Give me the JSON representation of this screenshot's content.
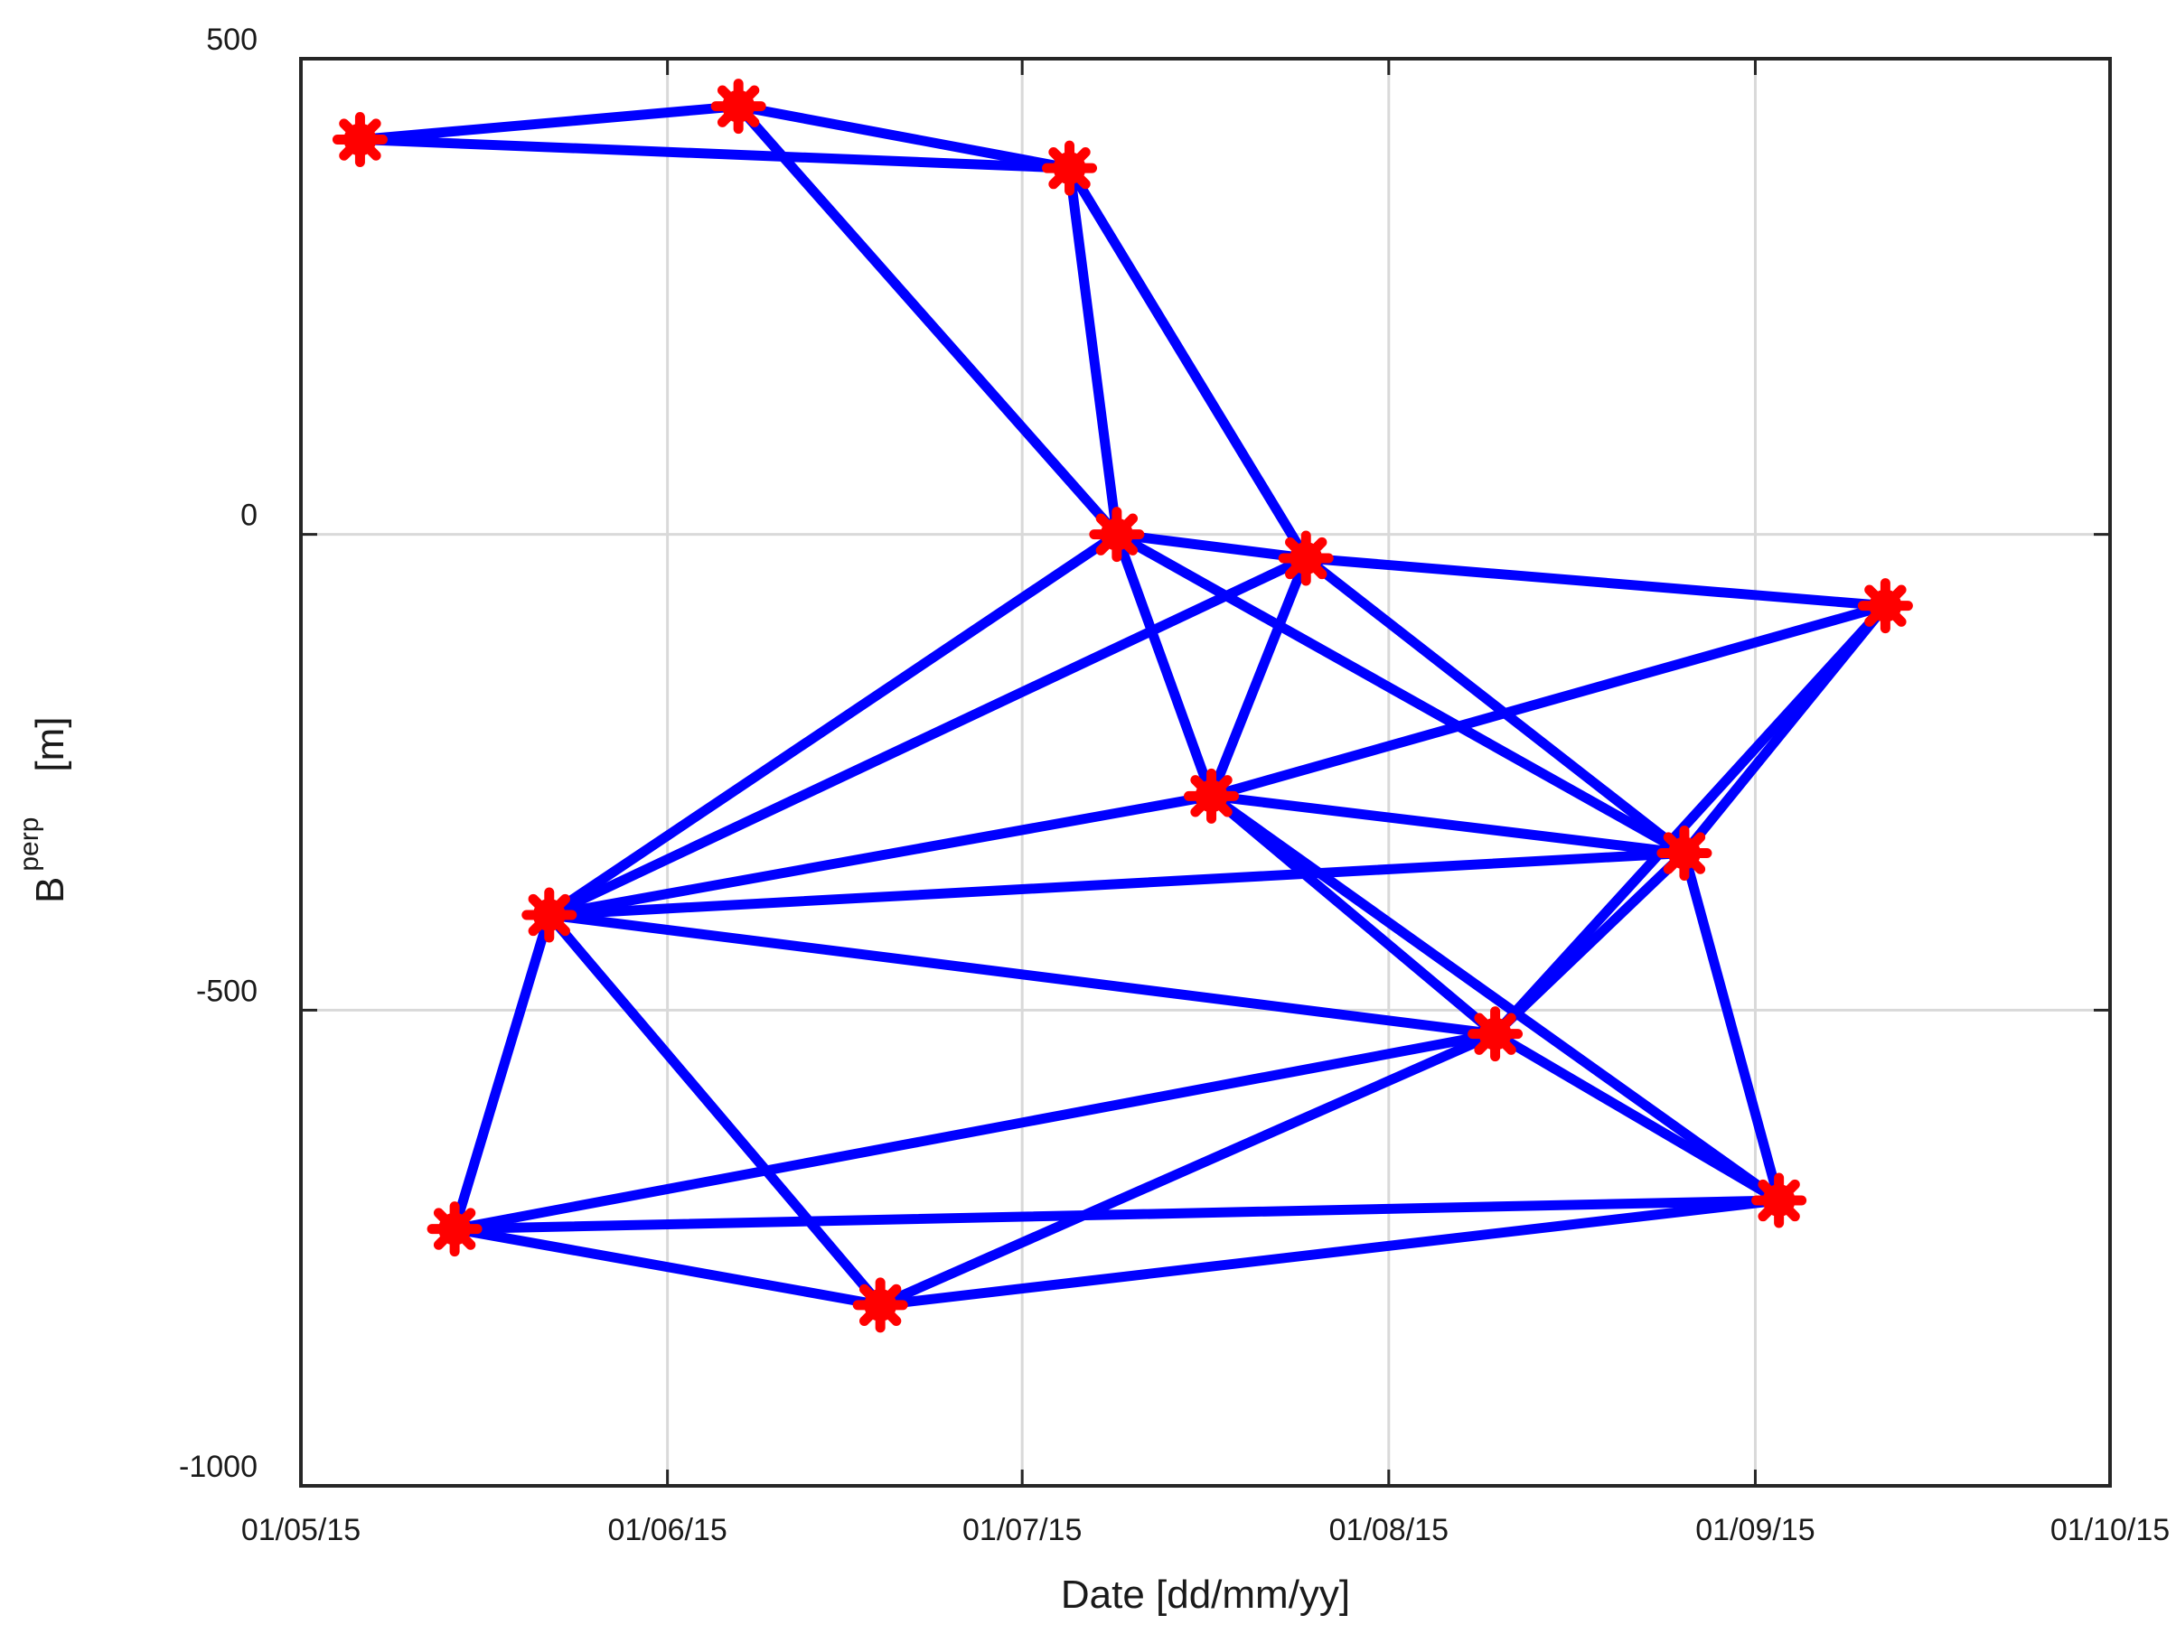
{
  "chart_data": {
    "type": "scatter",
    "xlabel": "Date  [dd/mm/yy]",
    "ylabel_main": "B",
    "ylabel_sub": "perp",
    "ylabel_unit": "[m]",
    "xlim": [
      "2015-05-01",
      "2015-10-01"
    ],
    "ylim": [
      -1000,
      500
    ],
    "x_ticks": [
      {
        "date": "2015-05-01",
        "label": "01/05/15"
      },
      {
        "date": "2015-06-01",
        "label": "01/06/15"
      },
      {
        "date": "2015-07-01",
        "label": "01/07/15"
      },
      {
        "date": "2015-08-01",
        "label": "01/08/15"
      },
      {
        "date": "2015-09-01",
        "label": "01/09/15"
      },
      {
        "date": "2015-10-01",
        "label": "01/10/15"
      }
    ],
    "y_ticks": [
      {
        "value": 500,
        "label": "500"
      },
      {
        "value": 0,
        "label": "0"
      },
      {
        "value": -500,
        "label": "-500"
      },
      {
        "value": -1000,
        "label": "-1000"
      }
    ],
    "grid": true,
    "colors": {
      "edge": "#0000ff",
      "node": "#ff0000",
      "grid": "#d9d9d9",
      "axis": "#262626"
    },
    "nodes": [
      {
        "id": "A",
        "date": "2015-05-06",
        "value": 415
      },
      {
        "id": "B",
        "date": "2015-05-14",
        "value": -730
      },
      {
        "id": "C",
        "date": "2015-05-22",
        "value": -400
      },
      {
        "id": "D",
        "date": "2015-06-07",
        "value": 450
      },
      {
        "id": "E",
        "date": "2015-06-19",
        "value": -810
      },
      {
        "id": "F",
        "date": "2015-07-05",
        "value": 385
      },
      {
        "id": "G",
        "date": "2015-07-09",
        "value": 0
      },
      {
        "id": "H",
        "date": "2015-07-17",
        "value": -275
      },
      {
        "id": "I",
        "date": "2015-07-25",
        "value": -25
      },
      {
        "id": "J",
        "date": "2015-08-10",
        "value": -525
      },
      {
        "id": "K",
        "date": "2015-08-26",
        "value": -335
      },
      {
        "id": "L",
        "date": "2015-09-03",
        "value": -700
      },
      {
        "id": "M",
        "date": "2015-09-12",
        "value": -75
      }
    ],
    "edges": [
      [
        "A",
        "D"
      ],
      [
        "A",
        "F"
      ],
      [
        "D",
        "F"
      ],
      [
        "D",
        "G"
      ],
      [
        "F",
        "G"
      ],
      [
        "F",
        "I"
      ],
      [
        "G",
        "I"
      ],
      [
        "G",
        "C"
      ],
      [
        "G",
        "H"
      ],
      [
        "G",
        "K"
      ],
      [
        "I",
        "M"
      ],
      [
        "I",
        "C"
      ],
      [
        "I",
        "H"
      ],
      [
        "I",
        "K"
      ],
      [
        "C",
        "H"
      ],
      [
        "C",
        "K"
      ],
      [
        "C",
        "J"
      ],
      [
        "C",
        "B"
      ],
      [
        "C",
        "E"
      ],
      [
        "H",
        "M"
      ],
      [
        "H",
        "K"
      ],
      [
        "H",
        "J"
      ],
      [
        "H",
        "L"
      ],
      [
        "K",
        "M"
      ],
      [
        "K",
        "J"
      ],
      [
        "K",
        "L"
      ],
      [
        "M",
        "J"
      ],
      [
        "J",
        "L"
      ],
      [
        "J",
        "B"
      ],
      [
        "J",
        "E"
      ],
      [
        "B",
        "L"
      ],
      [
        "B",
        "E"
      ],
      [
        "E",
        "L"
      ]
    ]
  }
}
